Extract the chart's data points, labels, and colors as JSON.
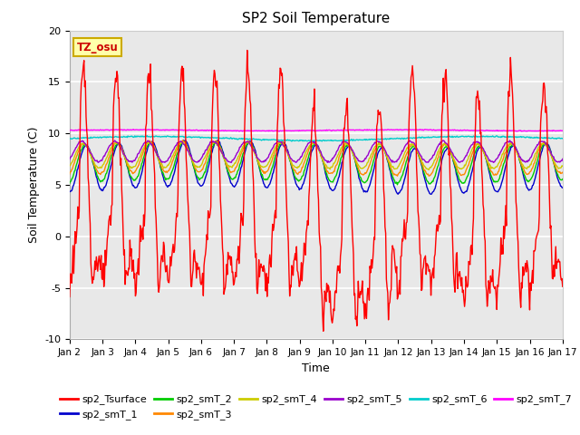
{
  "title": "SP2 Soil Temperature",
  "xlabel": "Time",
  "ylabel": "Soil Temperature (C)",
  "ylim": [
    -10,
    20
  ],
  "xlim": [
    0,
    15
  ],
  "xtick_labels": [
    "Jan 2",
    "Jan 3",
    "Jan 4",
    "Jan 5",
    "Jan 6",
    "Jan 7",
    "Jan 8",
    "Jan 9",
    "Jan 10",
    "Jan 11",
    "Jan 12",
    "Jan 13",
    "Jan 14",
    "Jan 15",
    "Jan 16",
    "Jan 17"
  ],
  "xtick_positions": [
    0,
    1,
    2,
    3,
    4,
    5,
    6,
    7,
    8,
    9,
    10,
    11,
    12,
    13,
    14,
    15
  ],
  "ytick_labels": [
    "-10",
    "-5",
    "0",
    "5",
    "10",
    "15",
    "20"
  ],
  "ytick_positions": [
    -10,
    -5,
    0,
    5,
    10,
    15,
    20
  ],
  "background_color": "#e8e8e8",
  "grid_color": "white",
  "annotation_text": "TZ_osu",
  "annotation_bg": "#ffffaa",
  "annotation_border": "#ccaa00",
  "series_colors": {
    "sp2_Tsurface": "#ff0000",
    "sp2_smT_1": "#0000cc",
    "sp2_smT_2": "#00cc00",
    "sp2_smT_3": "#ff8800",
    "sp2_smT_4": "#cccc00",
    "sp2_smT_5": "#9900cc",
    "sp2_smT_6": "#00cccc",
    "sp2_smT_7": "#ff00ff"
  },
  "legend_ncol_row1": 6,
  "legend_ncol_row2": 2,
  "figsize": [
    6.4,
    4.8
  ],
  "dpi": 100
}
